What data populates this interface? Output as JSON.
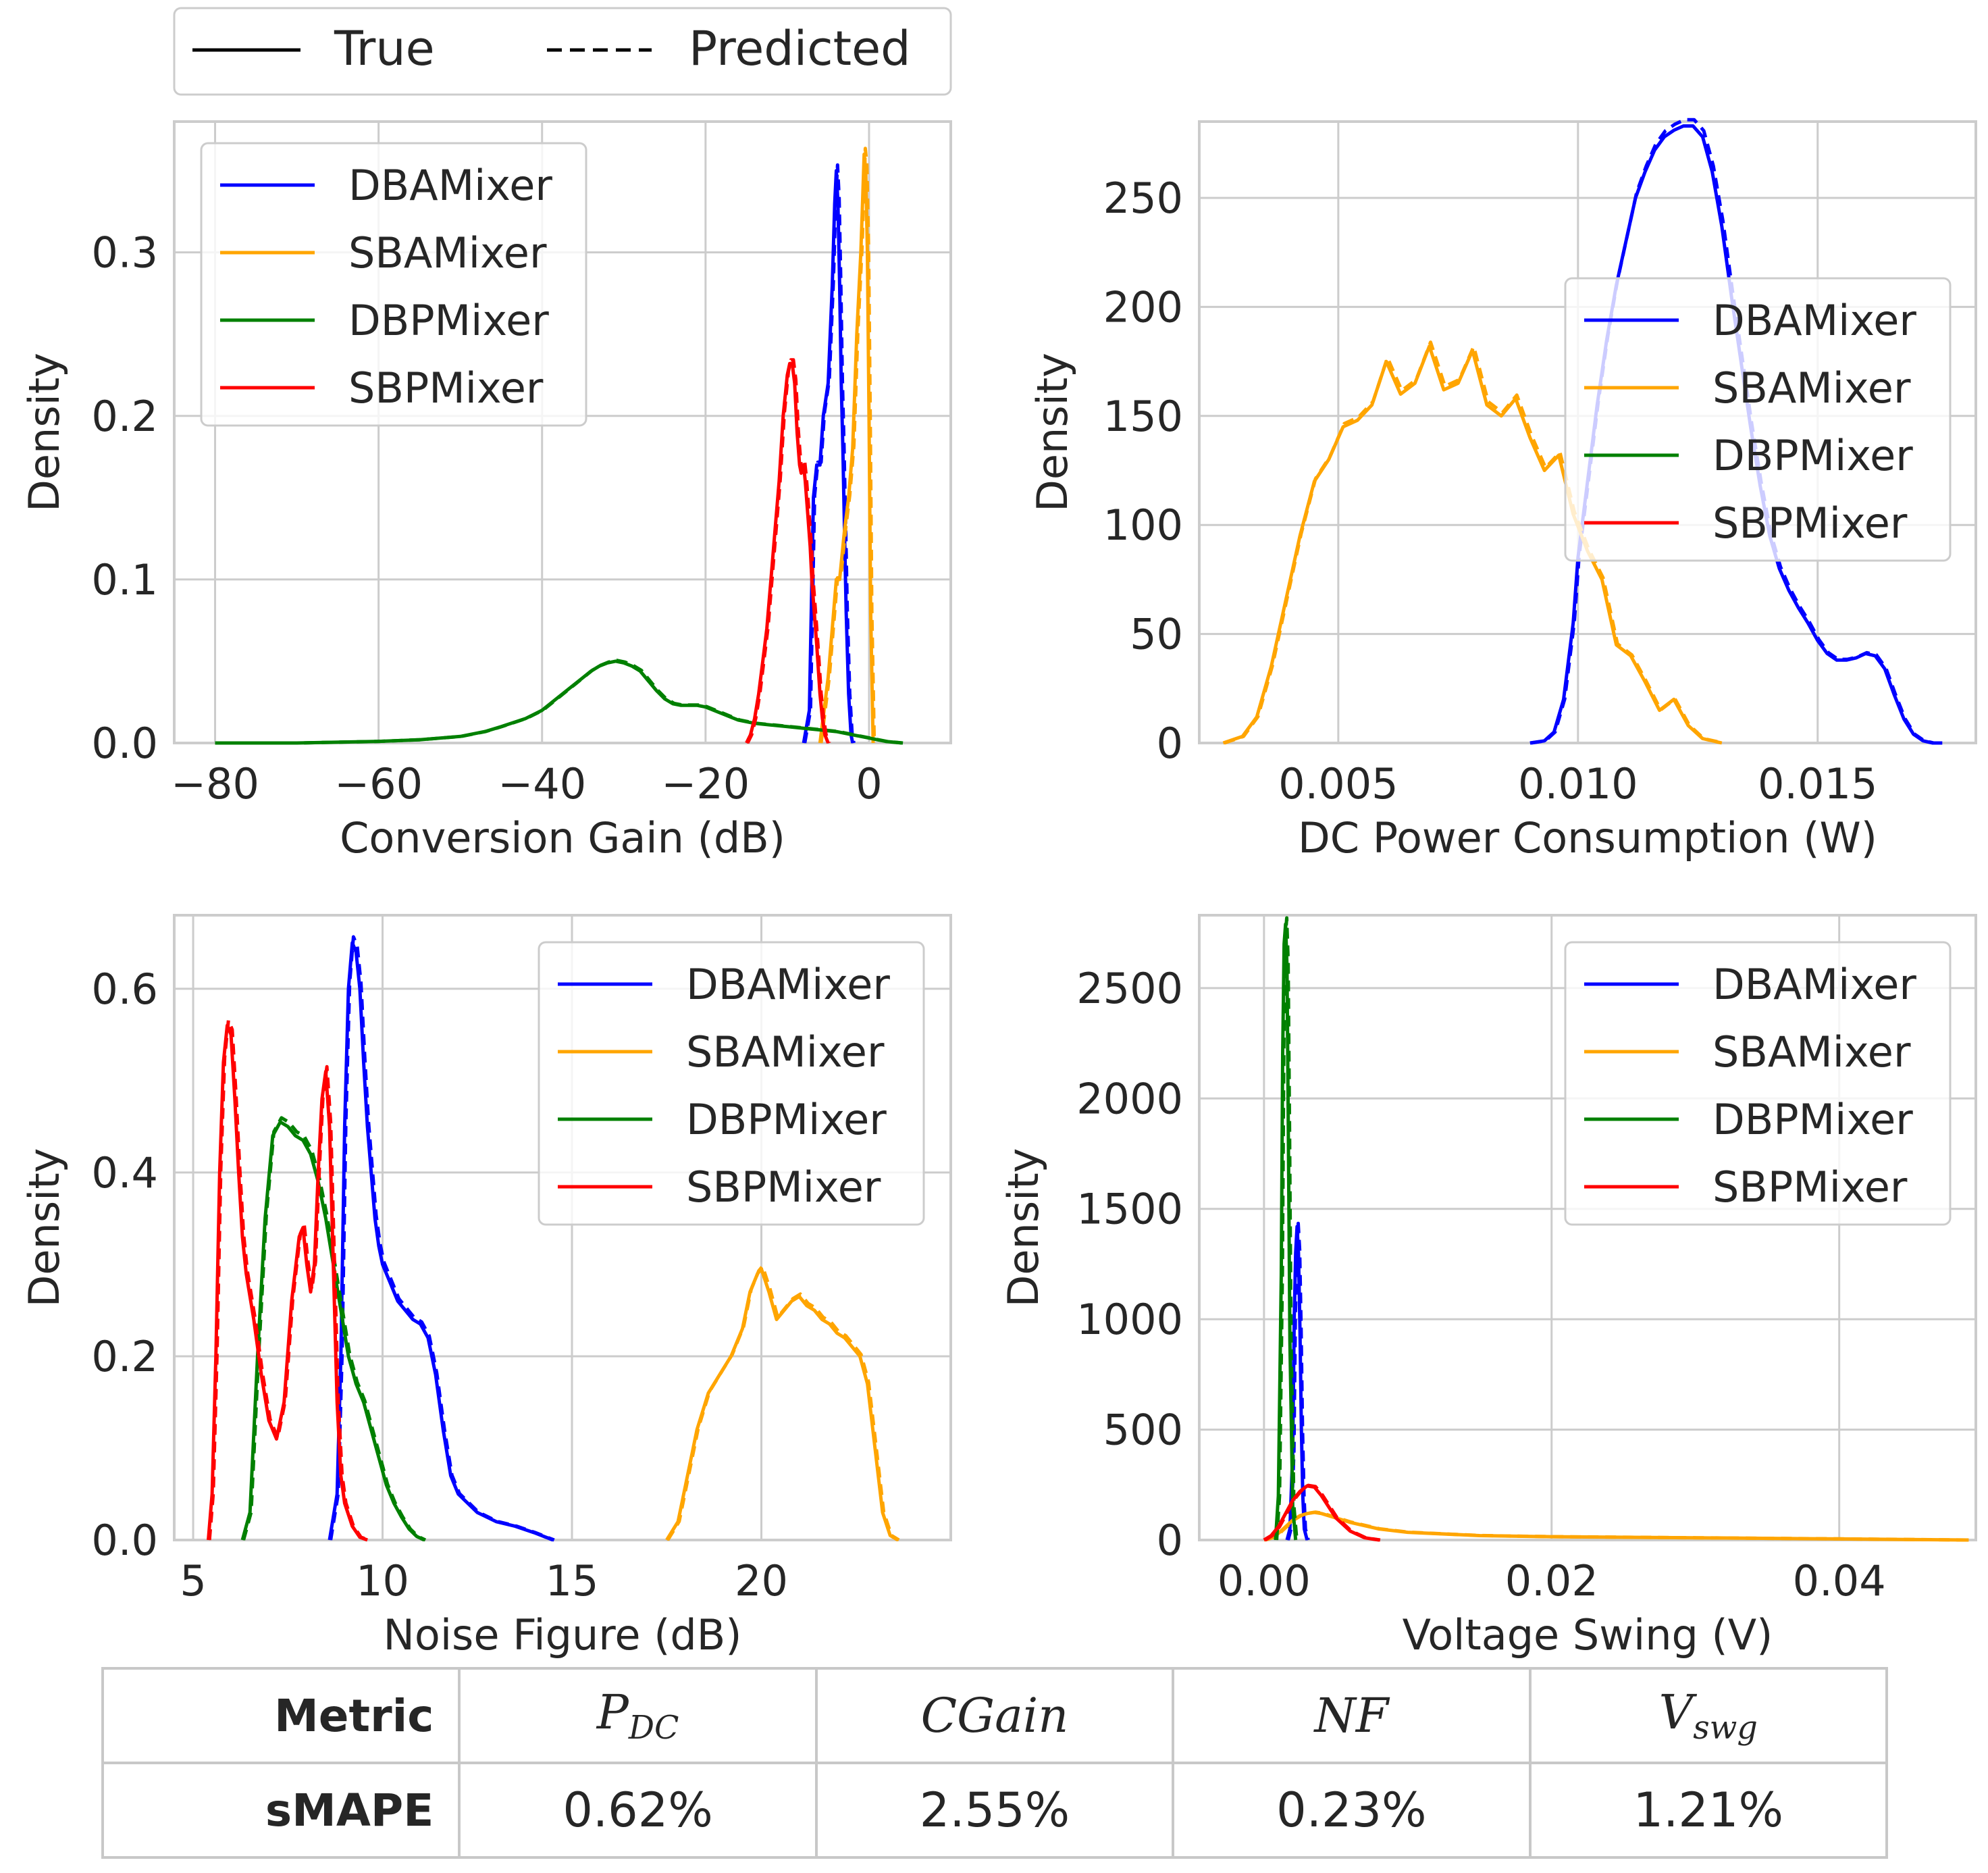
{
  "figure_legend": {
    "true_label": "True",
    "predicted_label": "Predicted"
  },
  "colors": {
    "DBAMixer": "#0000ff",
    "SBAMixer": "#ffa500",
    "DBPMixer": "#008000",
    "SBPMixer": "#ff0000",
    "grid": "#cccccc",
    "axis": "#cccccc",
    "text": "#262626"
  },
  "chart_data": [
    {
      "type": "line",
      "title": "",
      "xlabel": "Conversion Gain (dB)",
      "ylabel": "Density",
      "xlim": [
        -85,
        10
      ],
      "ylim": [
        0,
        0.38
      ],
      "xticks": [
        -80,
        -60,
        -40,
        -20,
        0
      ],
      "xtick_labels": [
        "−80",
        "−60",
        "−40",
        "−20",
        "0"
      ],
      "yticks": [
        0.0,
        0.1,
        0.2,
        0.3
      ],
      "ytick_labels": [
        "0.0",
        "0.1",
        "0.2",
        "0.3"
      ],
      "legend": "upper-left",
      "series": [
        {
          "name": "DBAMixer",
          "x": [
            -8,
            -7.3,
            -6.8,
            -6.4,
            -6,
            -5.6,
            -5,
            -4.5,
            -4.2,
            -4,
            -3.8,
            -3.6,
            -3.4,
            -3.2,
            -3,
            -2.8,
            -2.5,
            -2.2,
            -2
          ],
          "y": [
            0,
            0.02,
            0.15,
            0.17,
            0.17,
            0.2,
            0.22,
            0.28,
            0.33,
            0.35,
            0.33,
            0.28,
            0.22,
            0.18,
            0.13,
            0.08,
            0.03,
            0.005,
            0
          ]
        },
        {
          "name": "SBAMixer",
          "x": [
            -6,
            -5,
            -4.5,
            -4,
            -3.6,
            -3.2,
            -3,
            -2.5,
            -2,
            -1.5,
            -1,
            -0.8,
            -0.6,
            -0.4,
            -0.2,
            0,
            0.2,
            0.5
          ],
          "y": [
            0,
            0.04,
            0.07,
            0.1,
            0.1,
            0.12,
            0.13,
            0.15,
            0.18,
            0.25,
            0.3,
            0.33,
            0.36,
            0.35,
            0.3,
            0.2,
            0.08,
            0
          ]
        },
        {
          "name": "DBPMixer",
          "x": [
            -80,
            -70,
            -60,
            -55,
            -50,
            -47,
            -45,
            -42,
            -40,
            -38,
            -36,
            -35,
            -34,
            -33,
            -32,
            -31,
            -30,
            -29,
            -28,
            -27,
            -26,
            -25,
            -24,
            -23,
            -22,
            -21,
            -20,
            -19,
            -18,
            -17,
            -16,
            -14,
            -12,
            -10,
            -8,
            -6,
            -4,
            -2,
            0,
            2,
            4
          ],
          "y": [
            0,
            0,
            0.001,
            0.002,
            0.004,
            0.007,
            0.01,
            0.015,
            0.02,
            0.028,
            0.036,
            0.04,
            0.044,
            0.047,
            0.049,
            0.05,
            0.049,
            0.047,
            0.044,
            0.038,
            0.032,
            0.027,
            0.024,
            0.023,
            0.023,
            0.023,
            0.022,
            0.02,
            0.018,
            0.016,
            0.014,
            0.012,
            0.011,
            0.01,
            0.009,
            0.008,
            0.007,
            0.005,
            0.003,
            0.001,
            0
          ]
        },
        {
          "name": "SBPMixer",
          "x": [
            -15,
            -14.5,
            -14,
            -13.5,
            -13,
            -12.5,
            -12,
            -11.5,
            -11,
            -10.5,
            -10,
            -9.7,
            -9.4,
            -9.1,
            -8.8,
            -8.5,
            -8.3,
            -8,
            -7.8,
            -7.5,
            -7.2,
            -7,
            -6.7,
            -6.4,
            -6,
            -5.7,
            -5.4,
            -5
          ],
          "y": [
            0,
            0.005,
            0.015,
            0.03,
            0.05,
            0.07,
            0.1,
            0.13,
            0.16,
            0.2,
            0.225,
            0.232,
            0.232,
            0.22,
            0.19,
            0.17,
            0.165,
            0.17,
            0.16,
            0.14,
            0.12,
            0.1,
            0.08,
            0.06,
            0.03,
            0.015,
            0.005,
            0
          ]
        }
      ]
    },
    {
      "type": "line",
      "title": "",
      "xlabel": "DC Power Consumption (W)",
      "ylabel": "Density",
      "xlim": [
        0.0021,
        0.0183
      ],
      "ylim": [
        0,
        285
      ],
      "xticks": [
        0.005,
        0.01,
        0.015
      ],
      "xtick_labels": [
        "0.005",
        "0.010",
        "0.015"
      ],
      "yticks": [
        0,
        50,
        100,
        150,
        200,
        250
      ],
      "ytick_labels": [
        "0",
        "50",
        "100",
        "150",
        "200",
        "250"
      ],
      "legend": "center-right",
      "series": [
        {
          "name": "DBAMixer",
          "x": [
            0.009,
            0.0093,
            0.0095,
            0.0097,
            0.0099,
            0.01,
            0.0102,
            0.0104,
            0.0106,
            0.0108,
            0.011,
            0.0112,
            0.0114,
            0.0116,
            0.0118,
            0.012,
            0.0122,
            0.0124,
            0.0126,
            0.0128,
            0.013,
            0.0132,
            0.0134,
            0.0136,
            0.0138,
            0.014,
            0.0142,
            0.0144,
            0.0146,
            0.0148,
            0.015,
            0.0152,
            0.0154,
            0.0156,
            0.0158,
            0.016,
            0.0162,
            0.0164,
            0.0166,
            0.0168,
            0.017,
            0.0172,
            0.0174,
            0.0176
          ],
          "y": [
            0,
            1,
            5,
            20,
            55,
            85,
            120,
            155,
            185,
            210,
            230,
            250,
            262,
            272,
            278,
            281,
            283,
            283,
            278,
            262,
            237,
            205,
            175,
            145,
            118,
            95,
            80,
            70,
            62,
            55,
            47,
            41,
            38,
            38,
            39,
            41,
            40,
            34,
            22,
            11,
            4,
            1,
            0,
            0
          ]
        },
        {
          "name": "SBAMixer",
          "x": [
            0.0026,
            0.003,
            0.0033,
            0.0036,
            0.0039,
            0.0042,
            0.0045,
            0.0048,
            0.0051,
            0.0054,
            0.0057,
            0.006,
            0.0063,
            0.0066,
            0.0069,
            0.0072,
            0.0075,
            0.0078,
            0.0081,
            0.0084,
            0.0087,
            0.009,
            0.0093,
            0.0096,
            0.0099,
            0.0102,
            0.0105,
            0.0108,
            0.0111,
            0.0114,
            0.0117,
            0.012,
            0.0123,
            0.0126,
            0.013
          ],
          "y": [
            0,
            3,
            12,
            35,
            65,
            95,
            120,
            130,
            145,
            148,
            155,
            175,
            160,
            165,
            182,
            162,
            165,
            180,
            155,
            150,
            158,
            140,
            125,
            132,
            105,
            88,
            75,
            45,
            40,
            28,
            15,
            20,
            8,
            2,
            0
          ]
        },
        {
          "name": "DBPMixer",
          "x": [],
          "y": []
        },
        {
          "name": "SBPMixer",
          "x": [],
          "y": []
        }
      ]
    },
    {
      "type": "line",
      "title": "",
      "xlabel": "Noise Figure (dB)",
      "ylabel": "Density",
      "xlim": [
        4.5,
        25
      ],
      "ylim": [
        0,
        0.68
      ],
      "xticks": [
        5,
        10,
        15,
        20
      ],
      "xtick_labels": [
        "5",
        "10",
        "15",
        "20"
      ],
      "yticks": [
        0.0,
        0.2,
        0.4,
        0.6
      ],
      "ytick_labels": [
        "0.0",
        "0.2",
        "0.4",
        "0.6"
      ],
      "legend": "upper-right",
      "series": [
        {
          "name": "DBAMixer",
          "x": [
            8.6,
            8.8,
            8.9,
            9,
            9.1,
            9.2,
            9.3,
            9.4,
            9.5,
            9.6,
            9.7,
            9.8,
            9.9,
            10,
            10.2,
            10.4,
            10.6,
            10.8,
            11,
            11.2,
            11.4,
            11.6,
            11.8,
            12,
            12.5,
            13,
            13.5,
            14,
            14.5
          ],
          "y": [
            0,
            0.05,
            0.2,
            0.45,
            0.6,
            0.65,
            0.64,
            0.6,
            0.52,
            0.45,
            0.4,
            0.35,
            0.32,
            0.3,
            0.28,
            0.26,
            0.25,
            0.24,
            0.235,
            0.22,
            0.18,
            0.12,
            0.07,
            0.05,
            0.03,
            0.02,
            0.015,
            0.008,
            0
          ]
        },
        {
          "name": "SBAMixer",
          "x": [
            17.5,
            17.8,
            18,
            18.3,
            18.6,
            18.9,
            19.2,
            19.5,
            19.7,
            19.9,
            20,
            20.2,
            20.4,
            20.6,
            20.8,
            21,
            21.2,
            21.4,
            21.6,
            21.8,
            22,
            22.2,
            22.4,
            22.6,
            22.8,
            23,
            23.2,
            23.4,
            23.6
          ],
          "y": [
            0,
            0.02,
            0.06,
            0.12,
            0.16,
            0.18,
            0.2,
            0.23,
            0.27,
            0.29,
            0.295,
            0.27,
            0.24,
            0.25,
            0.26,
            0.265,
            0.255,
            0.25,
            0.24,
            0.235,
            0.225,
            0.22,
            0.21,
            0.2,
            0.17,
            0.1,
            0.03,
            0.005,
            0
          ]
        },
        {
          "name": "DBPMixer",
          "x": [
            6.3,
            6.5,
            6.7,
            6.9,
            7.1,
            7.3,
            7.5,
            7.7,
            7.9,
            8.1,
            8.3,
            8.5,
            8.7,
            8.9,
            9.1,
            9.3,
            9.5,
            9.7,
            9.9,
            10.1,
            10.3,
            10.5,
            10.7,
            10.9,
            11.1
          ],
          "y": [
            0,
            0.03,
            0.2,
            0.35,
            0.44,
            0.455,
            0.45,
            0.44,
            0.435,
            0.42,
            0.39,
            0.35,
            0.3,
            0.25,
            0.2,
            0.17,
            0.15,
            0.12,
            0.09,
            0.06,
            0.04,
            0.025,
            0.012,
            0.004,
            0
          ]
        },
        {
          "name": "SBPMixer",
          "x": [
            5.4,
            5.5,
            5.6,
            5.7,
            5.8,
            5.9,
            6,
            6.1,
            6.2,
            6.3,
            6.4,
            6.6,
            6.8,
            7,
            7.2,
            7.4,
            7.6,
            7.8,
            7.9,
            8,
            8.1,
            8.2,
            8.3,
            8.4,
            8.5,
            8.6,
            8.7,
            8.8,
            8.9,
            9,
            9.2,
            9.4,
            9.6
          ],
          "y": [
            0,
            0.05,
            0.2,
            0.4,
            0.52,
            0.56,
            0.55,
            0.48,
            0.4,
            0.33,
            0.29,
            0.24,
            0.18,
            0.13,
            0.11,
            0.15,
            0.26,
            0.33,
            0.34,
            0.3,
            0.27,
            0.3,
            0.4,
            0.48,
            0.51,
            0.45,
            0.3,
            0.15,
            0.07,
            0.04,
            0.015,
            0.003,
            0
          ]
        }
      ]
    },
    {
      "type": "line",
      "title": "",
      "xlabel": "Voltage Swing (V)",
      "ylabel": "Density",
      "xlim": [
        -0.0045,
        0.0495
      ],
      "ylim": [
        0,
        2830
      ],
      "xticks": [
        0.0,
        0.02,
        0.04
      ],
      "xtick_labels": [
        "0.00",
        "0.02",
        "0.04"
      ],
      "yticks": [
        0,
        500,
        1000,
        1500,
        2000,
        2500
      ],
      "ytick_labels": [
        "0",
        "500",
        "1000",
        "1500",
        "2000",
        "2500"
      ],
      "legend": "upper-right",
      "series": [
        {
          "name": "DBAMixer",
          "x": [
            0.0016,
            0.0018,
            0.002,
            0.0021,
            0.0022,
            0.0023,
            0.0024,
            0.0025,
            0.0026,
            0.0027,
            0.0028,
            0.003
          ],
          "y": [
            0,
            50,
            400,
            1000,
            1300,
            1420,
            1300,
            950,
            500,
            200,
            50,
            0
          ]
        },
        {
          "name": "SBAMixer",
          "x": [
            0,
            0.0005,
            0.001,
            0.0015,
            0.002,
            0.0025,
            0.003,
            0.0035,
            0.004,
            0.005,
            0.006,
            0.008,
            0.01,
            0.015,
            0.02,
            0.03,
            0.04,
            0.049
          ],
          "y": [
            0,
            10,
            30,
            60,
            90,
            110,
            120,
            125,
            120,
            100,
            80,
            50,
            35,
            20,
            15,
            10,
            5,
            0
          ]
        },
        {
          "name": "DBPMixer",
          "x": [
            0.0008,
            0.001,
            0.0012,
            0.0013,
            0.0014,
            0.0015,
            0.0016,
            0.0017,
            0.0018,
            0.002,
            0.0022
          ],
          "y": [
            0,
            200,
            1200,
            2200,
            2700,
            2790,
            2600,
            1800,
            900,
            150,
            0
          ]
        },
        {
          "name": "SBPMixer",
          "x": [
            0,
            0.0005,
            0.001,
            0.0015,
            0.002,
            0.0025,
            0.003,
            0.0035,
            0.004,
            0.0045,
            0.005,
            0.006,
            0.007,
            0.008
          ],
          "y": [
            0,
            20,
            60,
            120,
            180,
            220,
            245,
            240,
            200,
            150,
            100,
            40,
            10,
            0
          ]
        }
      ]
    }
  ],
  "table": {
    "row1_label": "Metric",
    "row2_label": "sMAPE",
    "headers": [
      {
        "base": "P",
        "sub": "DC"
      },
      {
        "base": "CGain",
        "sub": ""
      },
      {
        "base": "NF",
        "sub": ""
      },
      {
        "base": "V",
        "sub": "swg"
      }
    ],
    "values": [
      "0.62%",
      "2.55%",
      "0.23%",
      "1.21%"
    ]
  }
}
